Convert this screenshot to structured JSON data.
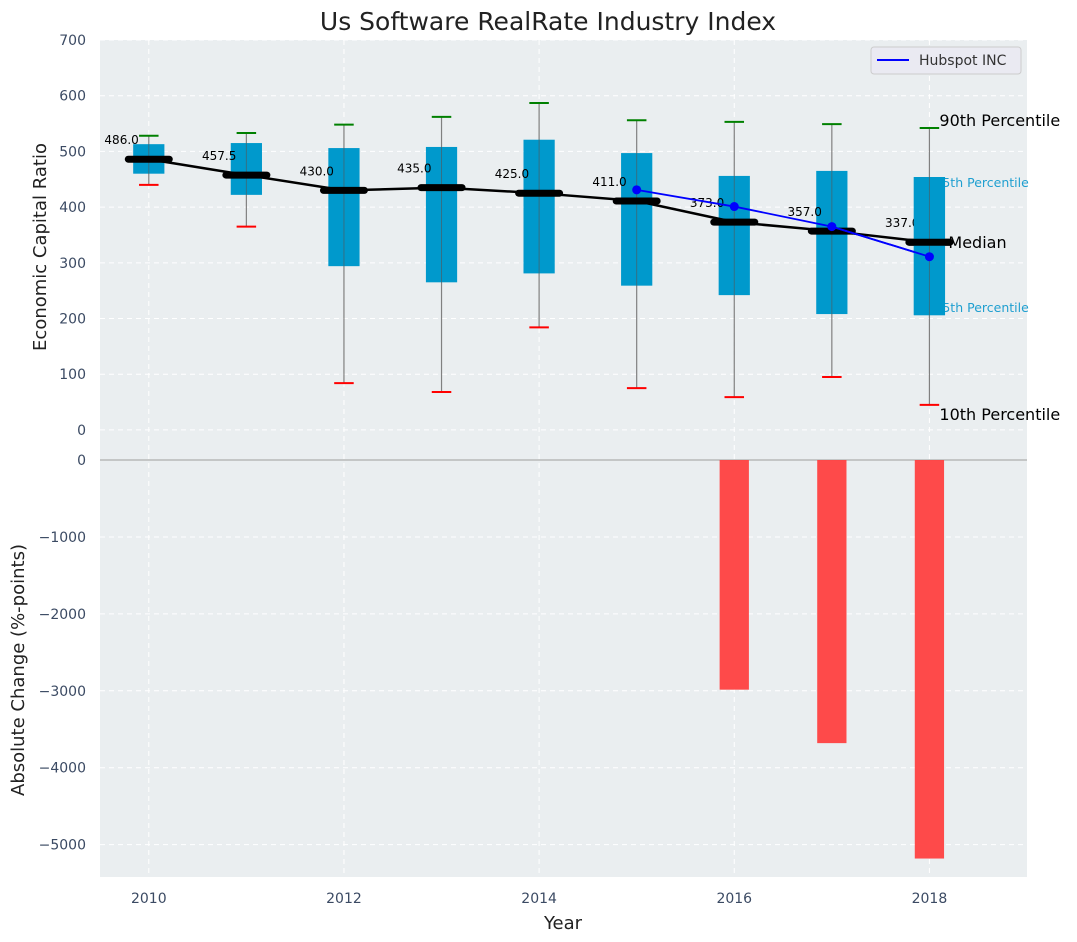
{
  "chart_data": {
    "type": "box-percentile-with-bar",
    "title": "Us Software RealRate Industry Index",
    "xlabel": "Year",
    "x_ticks": [
      "2010",
      "2012",
      "2014",
      "2016",
      "2018"
    ],
    "xlim": [
      2009.5,
      2019.0
    ],
    "top_panel": {
      "ylabel": "Economic Capital Ratio",
      "ylim": [
        -45,
        700
      ],
      "y_ticks": [
        "700",
        "600",
        "500",
        "400",
        "300",
        "200",
        "100",
        "0"
      ],
      "y_tick_values": [
        700,
        600,
        500,
        400,
        300,
        200,
        100,
        0
      ],
      "grid": true,
      "years": [
        2010,
        2011,
        2012,
        2013,
        2014,
        2015,
        2016,
        2017,
        2018
      ],
      "p10": [
        440,
        365,
        84,
        68,
        184,
        75,
        59,
        95,
        45
      ],
      "p25": [
        460,
        422,
        294,
        265,
        281,
        259,
        242,
        208,
        206
      ],
      "median": [
        486.0,
        457.5,
        430.0,
        435.0,
        425.0,
        411.0,
        373.0,
        357.0,
        337.0
      ],
      "median_labels": [
        "486.0",
        "457.5",
        "430.0",
        "435.0",
        "425.0",
        "411.0",
        "373.0",
        "357.0",
        "337.0"
      ],
      "p75": [
        513,
        515,
        506,
        508,
        521,
        497,
        456,
        465,
        454
      ],
      "p90": [
        528,
        533,
        548,
        562,
        587,
        556,
        553,
        549,
        542
      ],
      "company_series": {
        "name": "Hubspot INC",
        "years": [
          2015,
          2016,
          2017,
          2018
        ],
        "values": [
          431,
          401,
          365,
          311
        ],
        "color": "#0000ff"
      },
      "annotations": {
        "p90": "90th Percentile",
        "p75": "75th Percentile",
        "median": "Median",
        "p25": "25th Percentile",
        "p10": "10th Percentile"
      },
      "legend": {
        "entries": [
          "Hubspot INC"
        ],
        "position": "top-right"
      }
    },
    "bottom_panel": {
      "type": "bar",
      "ylabel": "Absolute Change (%-points)",
      "ylim": [
        -5420,
        65
      ],
      "y_ticks": [
        "0",
        "−1000",
        "−2000",
        "−3000",
        "−4000",
        "−5000"
      ],
      "y_tick_values": [
        0,
        -1000,
        -2000,
        -3000,
        -4000,
        -5000
      ],
      "grid": true,
      "years": [
        2016,
        2017,
        2018
      ],
      "values": [
        -2985,
        -3680,
        -5180
      ]
    },
    "colors": {
      "box": "#0099cc",
      "median": "#000000",
      "p90_cap": "#008000",
      "p10_cap": "#ff0000",
      "whisker": "#808080",
      "bar": "#ff4040",
      "background": "#eaeef0",
      "pct_small_label": "#1f9fd0"
    }
  }
}
